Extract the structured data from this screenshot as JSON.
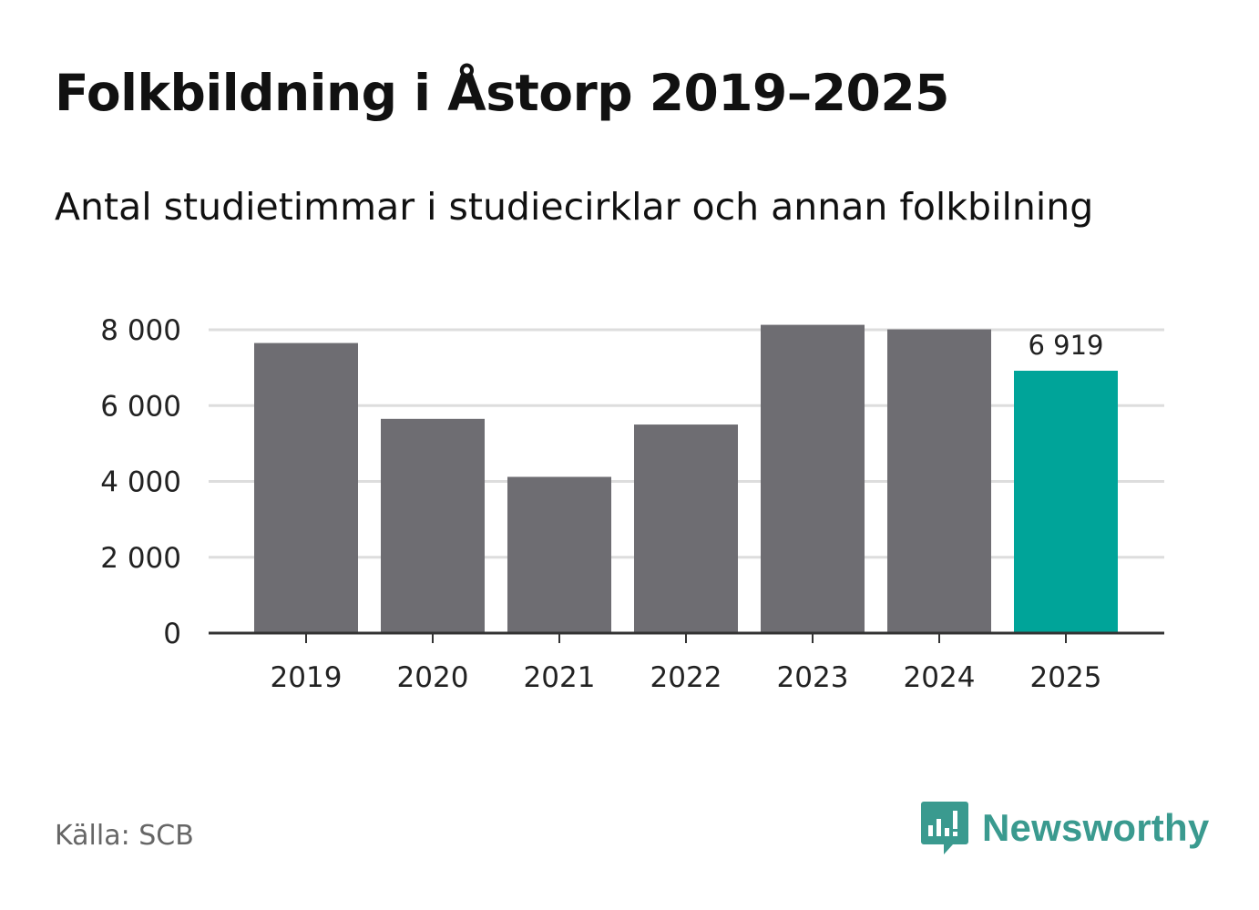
{
  "header": {
    "title": "Folkbildning i Åstorp 2019–2025",
    "subtitle": "Antal studietimmar i studiecirklar och annan folkbilning"
  },
  "footer": {
    "source": "Källa: SCB",
    "brand": "Newsworthy"
  },
  "colors": {
    "bar": "#6e6d72",
    "highlight": "#00a499",
    "grid": "#dddddd",
    "axis": "#333333",
    "text": "#222222",
    "brand": "#3a9a8f"
  },
  "chart_data": {
    "type": "bar",
    "title": "Folkbildning i Åstorp 2019–2025",
    "subtitle": "Antal studietimmar i studiecirklar och annan folkbilning",
    "xlabel": "",
    "ylabel": "",
    "categories": [
      "2019",
      "2020",
      "2021",
      "2022",
      "2023",
      "2024",
      "2025"
    ],
    "values": [
      7650,
      5650,
      4120,
      5500,
      8130,
      8010,
      6919
    ],
    "highlight_index": 6,
    "data_labels": [
      {
        "index": 6,
        "text": "6 919"
      }
    ],
    "yticks": [
      0,
      2000,
      4000,
      6000,
      8000
    ],
    "ytick_labels": [
      "0",
      "2 000",
      "4 000",
      "6 000",
      "8 000"
    ],
    "ylim": [
      0,
      8000
    ],
    "grid": true,
    "legend": "none"
  }
}
